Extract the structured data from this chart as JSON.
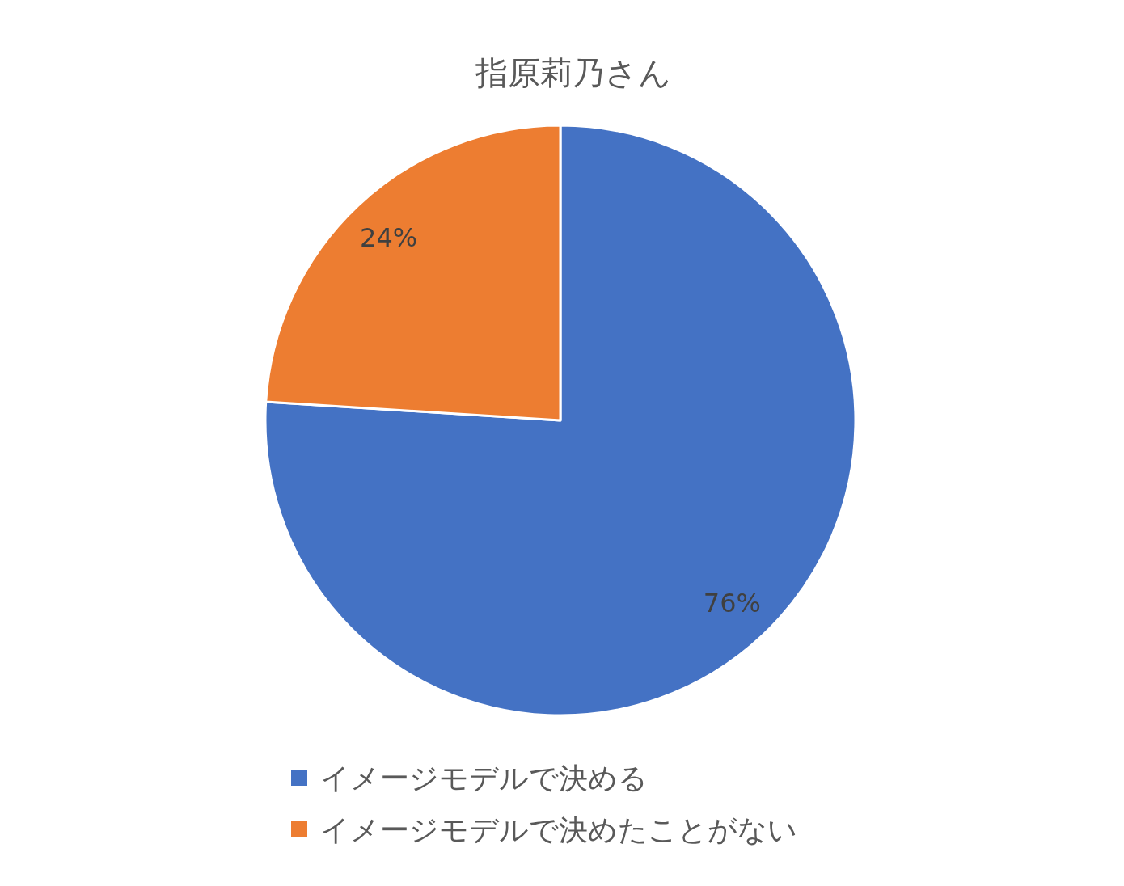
{
  "chart_data": {
    "type": "pie",
    "title": "指原莉乃さん",
    "categories": [
      "イメージモデルで決める",
      "イメージモデルで決めたことがない"
    ],
    "values": [
      76,
      24
    ],
    "colors": [
      "#4472c4",
      "#ed7d31"
    ],
    "value_labels": [
      "76%",
      "24%"
    ],
    "legend": "bottom"
  }
}
